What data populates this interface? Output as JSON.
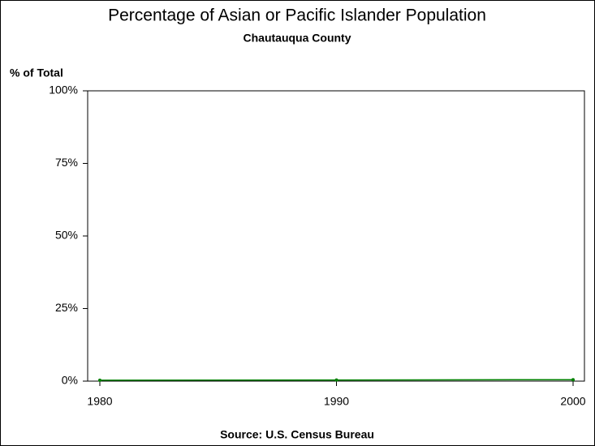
{
  "chart_data": {
    "type": "line",
    "title": "Percentage of Asian or Pacific Islander Population",
    "subtitle": "Chautauqua County",
    "y_label": "% of Total",
    "source": "Source: U.S. Census Bureau",
    "x": [
      1980,
      1990,
      2000
    ],
    "values": [
      0.3,
      0.4,
      0.5
    ],
    "color": "#008000",
    "xlim": [
      1980,
      2000
    ],
    "xticks": [
      1980,
      1990,
      2000
    ],
    "ylim": [
      0,
      100
    ],
    "yticks": [
      {
        "value": 0,
        "label": "0%"
      },
      {
        "value": 25,
        "label": "25%"
      },
      {
        "value": 50,
        "label": "50%"
      },
      {
        "value": 75,
        "label": "75%"
      },
      {
        "value": 100,
        "label": "100%"
      }
    ]
  }
}
